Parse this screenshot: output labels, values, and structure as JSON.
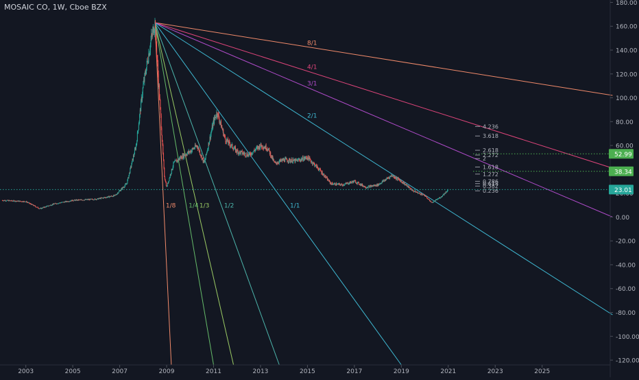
{
  "header": {
    "symbol_title": "MOSAIC CO, 1W, Cboe BZX"
  },
  "colors": {
    "background": "#131722",
    "axis_text": "#b2b5be",
    "axis_line": "#2a2e39",
    "candle_up": "#26a69a",
    "candle_down": "#ef5350",
    "fan_orange": "#f28b6b",
    "fan_red": "#e0457b",
    "fan_purple": "#b24ccc",
    "fan_teal": "#3fb8d2",
    "fan_green": "#66bb6a",
    "fan_lime": "#9ccc65",
    "fan_seagreen": "#4db6ac",
    "price_tag_green": "#4caf50",
    "price_tag_teal": "#26a69a"
  },
  "chart_data": {
    "type": "candlestick",
    "title": "MOSAIC CO, 1W, Cboe BZX",
    "x_axis": {
      "unit": "year",
      "range": [
        2001.9,
        2027.9
      ],
      "tick_labels": [
        "2003",
        "2005",
        "2007",
        "2009",
        "2011",
        "2013",
        "2015",
        "2017",
        "2019",
        "2021",
        "2023",
        "2025"
      ]
    },
    "y_axis": {
      "range": [
        -124,
        182
      ],
      "tick_labels": [
        "180.00",
        "160.00",
        "140.00",
        "120.00",
        "100.00",
        "80.00",
        "60.00",
        "40.00",
        "20.00",
        "0.00",
        "-20.00",
        "-40.00",
        "-60.00",
        "-80.00",
        "-100.00",
        "-120.00"
      ]
    },
    "price_path": [
      [
        2002.0,
        14
      ],
      [
        2003.0,
        13
      ],
      [
        2003.6,
        7
      ],
      [
        2004.2,
        11
      ],
      [
        2005.0,
        14
      ],
      [
        2006.0,
        15
      ],
      [
        2006.8,
        18
      ],
      [
        2007.3,
        28
      ],
      [
        2007.7,
        60
      ],
      [
        2008.0,
        110
      ],
      [
        2008.35,
        150
      ],
      [
        2008.5,
        163
      ],
      [
        2008.7,
        100
      ],
      [
        2008.9,
        35
      ],
      [
        2009.0,
        25
      ],
      [
        2009.3,
        45
      ],
      [
        2009.6,
        50
      ],
      [
        2010.0,
        55
      ],
      [
        2010.3,
        60
      ],
      [
        2010.6,
        45
      ],
      [
        2011.0,
        80
      ],
      [
        2011.15,
        88
      ],
      [
        2011.5,
        65
      ],
      [
        2012.0,
        55
      ],
      [
        2012.5,
        52
      ],
      [
        2013.0,
        60
      ],
      [
        2013.3,
        58
      ],
      [
        2013.6,
        45
      ],
      [
        2014.0,
        48
      ],
      [
        2014.5,
        47
      ],
      [
        2015.0,
        50
      ],
      [
        2015.5,
        40
      ],
      [
        2016.0,
        28
      ],
      [
        2016.5,
        27
      ],
      [
        2017.0,
        30
      ],
      [
        2017.5,
        25
      ],
      [
        2018.0,
        27
      ],
      [
        2018.6,
        35
      ],
      [
        2019.0,
        30
      ],
      [
        2019.5,
        22
      ],
      [
        2020.0,
        18
      ],
      [
        2020.3,
        12
      ],
      [
        2020.7,
        17
      ],
      [
        2021.0,
        23
      ]
    ],
    "gann_fan": {
      "origin": {
        "x": 2008.5,
        "price": 163
      },
      "lines": [
        {
          "label": "8/1",
          "color": "#f28b6b",
          "end": {
            "x": 2028.0,
            "price": 102
          }
        },
        {
          "label": "4/1",
          "color": "#e0457b",
          "end": {
            "x": 2028.0,
            "price": 41
          }
        },
        {
          "label": "3/1",
          "color": "#b24ccc",
          "end": {
            "x": 2028.0,
            "price": 0
          }
        },
        {
          "label": "2/1",
          "color": "#3fb8d2",
          "end": {
            "x": 2028.0,
            "price": -82
          }
        },
        {
          "label": "1/1",
          "color": "#3fb8d2",
          "end": {
            "x": 2019.0,
            "price": -124
          }
        },
        {
          "label": "1/2",
          "color": "#4db6ac",
          "end": {
            "x": 2013.8,
            "price": -124
          }
        },
        {
          "label": "1/3",
          "color": "#9ccc65",
          "end": {
            "x": 2011.85,
            "price": -124
          }
        },
        {
          "label": "1/4",
          "color": "#66bb6a",
          "end": {
            "x": 2011.0,
            "price": -124
          }
        },
        {
          "label": "1/8",
          "color": "#f28b6b",
          "end": {
            "x": 2009.2,
            "price": -124
          }
        }
      ]
    },
    "fib_levels": [
      {
        "label": "4.236",
        "price": 76
      },
      {
        "label": "3.618",
        "price": 68
      },
      {
        "label": "2.618",
        "price": 56
      },
      {
        "label": "2.272",
        "price": 52
      },
      {
        "label": "2",
        "price": 49
      },
      {
        "label": "1.618",
        "price": 42
      },
      {
        "label": "1.272",
        "price": 36
      },
      {
        "label": "0.786",
        "price": 30
      },
      {
        "label": "0.618",
        "price": 28
      },
      {
        "label": "0.382",
        "price": 26
      },
      {
        "label": "0.236",
        "price": 22
      }
    ],
    "price_tags": [
      {
        "label": "52.99",
        "price": 52.99,
        "color": "#4caf50"
      },
      {
        "label": "38.34",
        "price": 38.34,
        "color": "#4caf50"
      },
      {
        "label": "23.01",
        "price": 23.01,
        "color": "#26a69a"
      }
    ],
    "current_price": 23.01
  }
}
